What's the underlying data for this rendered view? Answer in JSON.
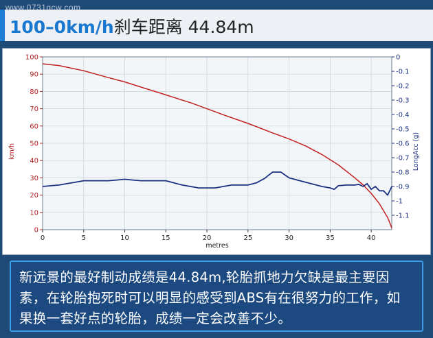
{
  "watermark": "www.0731qcw.com",
  "header": {
    "speed_range": "100–0km/h",
    "label": "刹车距离 44.84m"
  },
  "chart_data": {
    "type": "line",
    "xlabel": "metres",
    "ylabel_left": "km/h",
    "ylabel_right": "LongAcc (g)",
    "x_ticks": [
      0,
      5,
      10,
      15,
      20,
      25,
      30,
      35,
      40
    ],
    "xlim": [
      0,
      42.5
    ],
    "y_left_ticks": [
      0,
      10,
      20,
      30,
      40,
      50,
      60,
      70,
      80,
      90,
      100
    ],
    "ylim_left": [
      0,
      100
    ],
    "y_right_ticks": [
      "0",
      "-0.1",
      "-0.2",
      "-0.3",
      "-0.4",
      "-0.5",
      "-0.6",
      "-0.7",
      "-0.8",
      "-0.9",
      "-1",
      "-1.1"
    ],
    "ylim_right": [
      -1.2,
      0
    ],
    "grid": true,
    "series": [
      {
        "axis": "left",
        "color": "#c02020",
        "x": [
          0,
          2,
          5,
          8,
          10,
          12,
          15,
          18,
          20,
          22,
          25,
          28,
          30,
          32,
          34,
          36,
          38,
          39,
          40,
          40.5,
          41,
          41.5,
          42,
          42.3,
          42.5
        ],
        "values": [
          96,
          95,
          92,
          88,
          85.5,
          82.5,
          78,
          73.5,
          70,
          66.5,
          61.5,
          56,
          52.5,
          48.5,
          43.5,
          37.5,
          30,
          26,
          21,
          18,
          15,
          11,
          7,
          3.5,
          1
        ]
      },
      {
        "axis": "right",
        "color": "#1a2f80",
        "x": [
          0,
          1,
          2,
          3,
          4,
          5,
          6,
          7,
          8,
          9,
          10,
          11,
          12,
          13,
          14,
          15,
          16,
          17,
          18,
          19,
          20,
          21,
          22,
          23,
          24,
          25,
          26,
          27,
          28,
          29,
          30,
          31,
          32,
          33,
          34,
          35,
          35.5,
          36,
          37,
          38,
          38.5,
          39,
          39.5,
          40,
          40.5,
          41,
          41.5,
          42,
          42.5
        ],
        "values": [
          -0.9,
          -0.895,
          -0.89,
          -0.88,
          -0.87,
          -0.86,
          -0.86,
          -0.86,
          -0.86,
          -0.855,
          -0.85,
          -0.855,
          -0.86,
          -0.86,
          -0.86,
          -0.86,
          -0.875,
          -0.89,
          -0.9,
          -0.91,
          -0.91,
          -0.91,
          -0.9,
          -0.89,
          -0.89,
          -0.89,
          -0.875,
          -0.845,
          -0.8,
          -0.8,
          -0.84,
          -0.855,
          -0.87,
          -0.885,
          -0.9,
          -0.91,
          -0.92,
          -0.895,
          -0.89,
          -0.89,
          -0.885,
          -0.9,
          -0.88,
          -0.92,
          -0.9,
          -0.93,
          -0.93,
          -0.96,
          -0.9
        ]
      }
    ]
  },
  "caption": {
    "text": "新远景的最好制动成绩是44.84m,轮胎抓地力欠缺是最主要因素，在轮胎抱死时可以明显的感受到ABS有在很努力的工作，如果换一套好点的轮胎，成绩一定会改善不少。"
  }
}
